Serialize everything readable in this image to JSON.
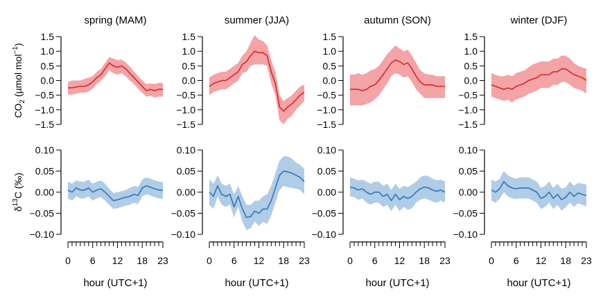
{
  "chart_data": {
    "type": "line",
    "hours": [
      0,
      1,
      2,
      3,
      4,
      5,
      6,
      7,
      8,
      9,
      10,
      11,
      12,
      13,
      14,
      15,
      16,
      17,
      18,
      19,
      20,
      21,
      22,
      23
    ],
    "xlabel": "hour (UTC+1)",
    "xticks": [
      0,
      6,
      12,
      18,
      23
    ],
    "columns": [
      "spring (MAM)",
      "summer (JJA)",
      "autumn (SON)",
      "winter (DJF)"
    ],
    "colors": {
      "co2_line": "#d62728",
      "co2_band": "#f4a3a6",
      "d13c_line": "#2e75b6",
      "d13c_band": "#b0cce6"
    },
    "rows": [
      {
        "id": "co2",
        "ylabel_main": "CO",
        "ylabel_sub": "2",
        "ylabel_rest": " (µmol mol",
        "ylabel_sup": "−1",
        "ylabel_end": ")",
        "ylim": [
          -1.5,
          1.5
        ],
        "yticks": [
          -1.5,
          -1.0,
          -0.5,
          0.0,
          0.5,
          1.0,
          1.5
        ],
        "yticklabels": [
          "−1.5",
          "−1.0",
          "−0.5",
          "0.0",
          "0.5",
          "1.0",
          "1.5"
        ],
        "series": [
          {
            "season": "spring (MAM)",
            "mean": [
              -0.25,
              -0.25,
              -0.22,
              -0.2,
              -0.2,
              -0.15,
              -0.05,
              0.1,
              0.2,
              0.4,
              0.6,
              0.5,
              0.45,
              0.5,
              0.4,
              0.25,
              0.1,
              -0.05,
              -0.2,
              -0.35,
              -0.3,
              -0.35,
              -0.3,
              -0.3
            ],
            "upper": [
              -0.05,
              0.0,
              0.0,
              0.0,
              0.05,
              0.1,
              0.15,
              0.3,
              0.4,
              0.6,
              0.8,
              0.75,
              0.7,
              0.72,
              0.62,
              0.48,
              0.3,
              0.15,
              0.0,
              -0.12,
              -0.1,
              -0.12,
              -0.08,
              -0.08
            ],
            "lower": [
              -0.48,
              -0.48,
              -0.45,
              -0.42,
              -0.42,
              -0.38,
              -0.28,
              -0.12,
              0.0,
              0.15,
              0.35,
              0.25,
              0.2,
              0.25,
              0.15,
              0.0,
              -0.12,
              -0.28,
              -0.42,
              -0.55,
              -0.52,
              -0.58,
              -0.55,
              -0.55
            ]
          },
          {
            "season": "summer (JJA)",
            "mean": [
              -0.2,
              -0.1,
              -0.05,
              0.0,
              0.0,
              0.1,
              0.2,
              0.3,
              0.55,
              0.65,
              0.85,
              1.0,
              0.95,
              0.95,
              0.85,
              0.3,
              -0.1,
              -0.9,
              -1.05,
              -0.9,
              -0.8,
              -0.65,
              -0.5,
              -0.4
            ],
            "upper": [
              0.1,
              0.2,
              0.25,
              0.3,
              0.3,
              0.4,
              0.5,
              0.6,
              0.85,
              1.0,
              1.3,
              1.55,
              1.4,
              1.35,
              1.2,
              0.7,
              0.3,
              -0.5,
              -0.7,
              -0.6,
              -0.5,
              -0.35,
              -0.2,
              -0.15
            ],
            "lower": [
              -0.5,
              -0.4,
              -0.35,
              -0.3,
              -0.3,
              -0.2,
              -0.1,
              0.0,
              0.25,
              0.3,
              0.5,
              0.55,
              0.55,
              0.55,
              0.5,
              -0.1,
              -0.5,
              -1.35,
              -1.5,
              -1.3,
              -1.2,
              -1.0,
              -0.85,
              -0.7
            ]
          },
          {
            "season": "autumn (SON)",
            "mean": [
              -0.3,
              -0.3,
              -0.3,
              -0.35,
              -0.3,
              -0.2,
              -0.15,
              0.0,
              0.2,
              0.4,
              0.6,
              0.7,
              0.65,
              0.55,
              0.6,
              0.4,
              0.15,
              -0.05,
              -0.15,
              -0.15,
              -0.15,
              -0.2,
              -0.2,
              -0.2
            ],
            "upper": [
              0.2,
              0.2,
              0.25,
              0.2,
              0.25,
              0.35,
              0.4,
              0.5,
              0.7,
              0.9,
              1.05,
              1.2,
              1.1,
              1.0,
              1.05,
              0.85,
              0.6,
              0.35,
              0.25,
              0.2,
              0.2,
              0.15,
              0.15,
              0.15
            ],
            "lower": [
              -0.85,
              -0.85,
              -0.85,
              -0.85,
              -0.8,
              -0.75,
              -0.65,
              -0.5,
              -0.3,
              -0.1,
              0.15,
              0.25,
              0.2,
              0.1,
              0.15,
              -0.05,
              -0.3,
              -0.45,
              -0.6,
              -0.6,
              -0.6,
              -0.6,
              -0.6,
              -0.6
            ]
          },
          {
            "season": "winter (DJF)",
            "mean": [
              -0.15,
              -0.2,
              -0.25,
              -0.3,
              -0.25,
              -0.3,
              -0.2,
              -0.15,
              -0.1,
              0.0,
              0.05,
              0.1,
              0.2,
              0.2,
              0.2,
              0.3,
              0.3,
              0.4,
              0.4,
              0.3,
              0.2,
              0.15,
              0.1,
              0.0
            ],
            "upper": [
              0.25,
              0.2,
              0.15,
              0.15,
              0.2,
              0.15,
              0.25,
              0.3,
              0.35,
              0.45,
              0.55,
              0.6,
              0.65,
              0.65,
              0.65,
              0.75,
              0.75,
              0.85,
              0.85,
              0.75,
              0.6,
              0.5,
              0.45,
              0.4
            ],
            "lower": [
              -0.55,
              -0.6,
              -0.65,
              -0.7,
              -0.65,
              -0.75,
              -0.65,
              -0.6,
              -0.55,
              -0.45,
              -0.4,
              -0.35,
              -0.25,
              -0.25,
              -0.25,
              -0.15,
              -0.15,
              -0.05,
              -0.05,
              -0.15,
              -0.25,
              -0.3,
              -0.35,
              -0.45
            ]
          }
        ]
      },
      {
        "id": "d13c",
        "ylabel_main": "δ",
        "ylabel_sup": "13",
        "ylabel_rest": "C (‰)",
        "ylim": [
          -0.1,
          0.1
        ],
        "yticks": [
          -0.1,
          -0.05,
          0.0,
          0.05,
          0.1
        ],
        "yticklabels": [
          "−0.10",
          "−0.05",
          "0.00",
          "0.05",
          "0.10"
        ],
        "series": [
          {
            "season": "spring (MAM)",
            "mean": [
              0.005,
              0.0,
              0.01,
              0.005,
              0.005,
              0.01,
              0.0,
              0.005,
              0.008,
              0.0,
              -0.01,
              -0.02,
              -0.018,
              -0.015,
              -0.012,
              -0.01,
              -0.005,
              -0.008,
              0.01,
              0.015,
              0.012,
              0.008,
              0.005,
              0.004
            ],
            "upper": [
              0.025,
              0.02,
              0.028,
              0.025,
              0.025,
              0.03,
              0.02,
              0.025,
              0.028,
              0.02,
              0.008,
              -0.002,
              0.0,
              0.002,
              0.005,
              0.01,
              0.015,
              0.012,
              0.03,
              0.035,
              0.032,
              0.028,
              0.025,
              0.024
            ],
            "lower": [
              -0.015,
              -0.02,
              -0.01,
              -0.015,
              -0.015,
              -0.01,
              -0.02,
              -0.015,
              -0.012,
              -0.02,
              -0.03,
              -0.04,
              -0.038,
              -0.035,
              -0.032,
              -0.03,
              -0.025,
              -0.028,
              -0.01,
              -0.005,
              -0.008,
              -0.012,
              -0.015,
              -0.016
            ]
          },
          {
            "season": "summer (JJA)",
            "mean": [
              0.0,
              -0.01,
              0.015,
              -0.005,
              -0.01,
              -0.005,
              -0.035,
              -0.01,
              -0.04,
              -0.06,
              -0.058,
              -0.045,
              -0.05,
              -0.04,
              -0.04,
              -0.02,
              0.01,
              0.04,
              0.05,
              0.048,
              0.045,
              0.04,
              0.035,
              0.025
            ],
            "upper": [
              0.03,
              0.02,
              0.04,
              0.02,
              0.015,
              0.02,
              -0.005,
              0.015,
              -0.01,
              -0.03,
              -0.03,
              -0.02,
              -0.02,
              -0.01,
              -0.005,
              0.015,
              0.045,
              0.075,
              0.085,
              0.085,
              0.08,
              0.07,
              0.065,
              0.055
            ],
            "lower": [
              -0.03,
              -0.04,
              -0.01,
              -0.03,
              -0.035,
              -0.03,
              -0.06,
              -0.035,
              -0.07,
              -0.09,
              -0.085,
              -0.07,
              -0.08,
              -0.07,
              -0.075,
              -0.055,
              -0.025,
              0.005,
              0.015,
              0.012,
              0.01,
              0.008,
              0.005,
              -0.005
            ]
          },
          {
            "season": "autumn (SON)",
            "mean": [
              0.012,
              0.01,
              0.005,
              0.008,
              0.0,
              -0.005,
              0.0,
              0.0,
              -0.01,
              -0.005,
              -0.02,
              -0.005,
              -0.018,
              -0.01,
              -0.015,
              -0.01,
              0.0,
              0.008,
              0.012,
              0.01,
              0.005,
              0.002,
              0.005,
              0.0
            ],
            "upper": [
              0.035,
              0.032,
              0.028,
              0.03,
              0.025,
              0.02,
              0.025,
              0.025,
              0.015,
              0.02,
              0.005,
              0.02,
              0.008,
              0.015,
              0.012,
              0.018,
              0.025,
              0.035,
              0.04,
              0.038,
              0.032,
              0.028,
              0.03,
              0.025
            ],
            "lower": [
              -0.01,
              -0.012,
              -0.018,
              -0.015,
              -0.025,
              -0.03,
              -0.025,
              -0.025,
              -0.035,
              -0.03,
              -0.045,
              -0.03,
              -0.045,
              -0.035,
              -0.042,
              -0.038,
              -0.025,
              -0.018,
              -0.015,
              -0.018,
              -0.022,
              -0.025,
              -0.02,
              -0.025
            ]
          },
          {
            "season": "winter (DJF)",
            "mean": [
              0.005,
              0.0,
              0.008,
              0.025,
              0.015,
              0.01,
              0.008,
              0.01,
              0.01,
              0.01,
              0.005,
              0.0,
              -0.015,
              -0.01,
              0.0,
              -0.015,
              -0.005,
              -0.018,
              -0.012,
              0.0,
              -0.01,
              -0.002,
              -0.005,
              -0.008
            ],
            "upper": [
              0.03,
              0.025,
              0.032,
              0.05,
              0.04,
              0.035,
              0.032,
              0.035,
              0.035,
              0.035,
              0.03,
              0.025,
              0.01,
              0.015,
              0.025,
              0.01,
              0.02,
              0.008,
              0.012,
              0.025,
              0.015,
              0.022,
              0.02,
              0.018
            ],
            "lower": [
              -0.02,
              -0.025,
              -0.016,
              0.0,
              -0.01,
              -0.015,
              -0.016,
              -0.015,
              -0.015,
              -0.015,
              -0.02,
              -0.025,
              -0.04,
              -0.035,
              -0.025,
              -0.04,
              -0.03,
              -0.044,
              -0.036,
              -0.025,
              -0.035,
              -0.026,
              -0.03,
              -0.034
            ]
          }
        ]
      }
    ]
  }
}
